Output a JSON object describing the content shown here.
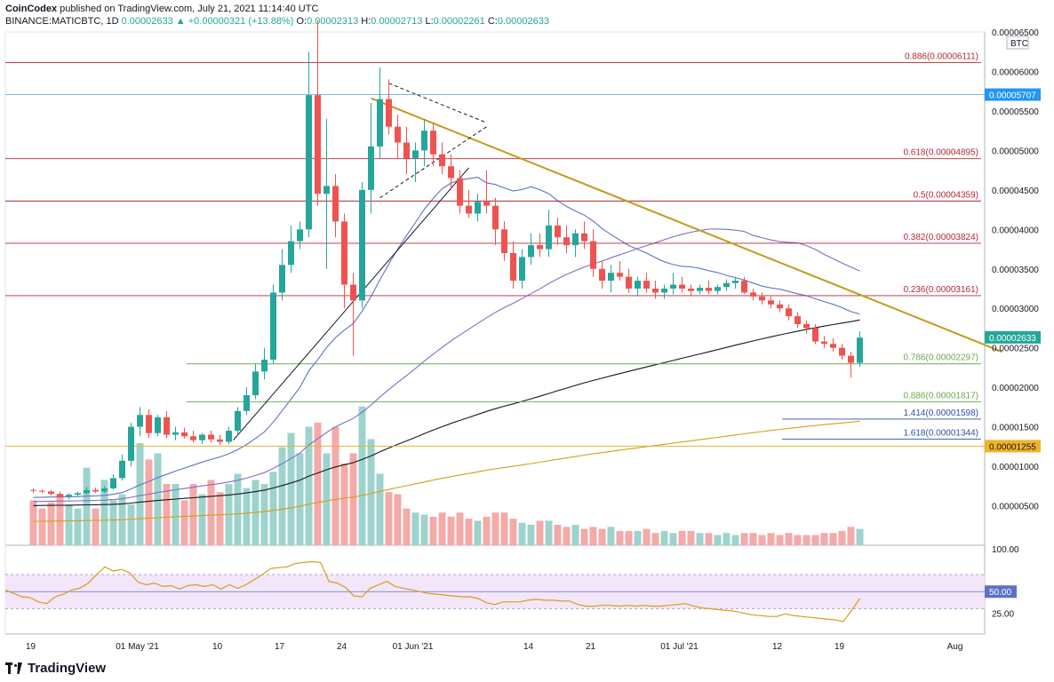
{
  "header": {
    "publisher": "CoinCodex",
    "published_text": "published on TradingView.com, July 21, 2021 11:14:40 UTC",
    "symbol": "BINANCE:MATICBTC, 1D",
    "last": "0.00002633",
    "change": "▲ +0.00000321 (+13.88%)",
    "o_label": "O:",
    "o": "0.00002313",
    "h_label": "H:",
    "h": "0.00002713",
    "l_label": "L:",
    "l": "0.00002261",
    "c_label": "C:",
    "c": "0.00002633"
  },
  "footer": {
    "brand": "TradingView"
  },
  "colors": {
    "up": "#26a69a",
    "down": "#ef5350",
    "up_vol": "#9ed3cd",
    "down_vol": "#f4aaa8",
    "trendline": "#c29b1a",
    "fib": "#b22833",
    "fib_green": "#6aa84f",
    "fib_blue": "#2f4fa8",
    "ma_black": "#131722",
    "ma_blue": "#5b73c7",
    "ma_purple": "#7a6fc4",
    "ma_orange": "#d4a017",
    "rsi": "#d4a017",
    "rsi_band": "#f3e5fa"
  },
  "chart_data": {
    "type": "candlestick",
    "price_axis_unit": "BTC",
    "ylim": [
      0,
      6.5e-05
    ],
    "price_ticks": [
      "0.00000500",
      "0.00001000",
      "0.00001500",
      "0.00002000",
      "0.00002500",
      "0.00003000",
      "0.00003500",
      "0.00004000",
      "0.00004500",
      "0.00005000",
      "0.00005500",
      "0.00006000",
      "0.00006500"
    ],
    "x_ticks": [
      {
        "label": "19",
        "day": 0
      },
      {
        "label": "01 May '21",
        "day": 12
      },
      {
        "label": "10",
        "day": 21
      },
      {
        "label": "17",
        "day": 28
      },
      {
        "label": "24",
        "day": 35
      },
      {
        "label": "01 Jun '21",
        "day": 43
      },
      {
        "label": "14",
        "day": 56
      },
      {
        "label": "21",
        "day": 63
      },
      {
        "label": "01 Jul '21",
        "day": 73
      },
      {
        "label": "12",
        "day": 84
      },
      {
        "label": "19",
        "day": 91
      },
      {
        "label": "Aug",
        "day": 104
      }
    ],
    "candles": [
      [
        7e-06,
        7.2e-06,
        6.6e-06,
        6.9e-06
      ],
      [
        6.9e-06,
        7.1e-06,
        6.6e-06,
        6.8e-06
      ],
      [
        6.8e-06,
        7e-06,
        6.3e-06,
        6.5e-06
      ],
      [
        6.5e-06,
        6.8e-06,
        6e-06,
        6.1e-06
      ],
      [
        6.1e-06,
        6.6e-06,
        5.8e-06,
        6.4e-06
      ],
      [
        6.4e-06,
        6.8e-06,
        6.1e-06,
        6.6e-06
      ],
      [
        6.6e-06,
        7.4e-06,
        6.4e-06,
        7e-06
      ],
      [
        7e-06,
        7.3e-06,
        6.6e-06,
        6.8e-06
      ],
      [
        6.8e-06,
        7.5e-06,
        6.6e-06,
        7.2e-06
      ],
      [
        7.2e-06,
        9e-06,
        7e-06,
        8.5e-06
      ],
      [
        8.5e-06,
        1.15e-05,
        8.2e-06,
        1.07e-05
      ],
      [
        1.07e-05,
        1.55e-05,
        1e-05,
        1.5e-05
      ],
      [
        1.5e-05,
        1.75e-05,
        1.38e-05,
        1.65e-05
      ],
      [
        1.65e-05,
        1.72e-05,
        1.36e-05,
        1.42e-05
      ],
      [
        1.42e-05,
        1.65e-05,
        1.38e-05,
        1.62e-05
      ],
      [
        1.62e-05,
        1.7e-05,
        1.35e-05,
        1.4e-05
      ],
      [
        1.4e-05,
        1.5e-05,
        1.33e-05,
        1.43e-05
      ],
      [
        1.43e-05,
        1.49e-05,
        1.35e-05,
        1.38e-05
      ],
      [
        1.38e-05,
        1.45e-05,
        1.3e-05,
        1.33e-05
      ],
      [
        1.33e-05,
        1.42e-05,
        1.28e-05,
        1.4e-05
      ],
      [
        1.4e-05,
        1.45e-05,
        1.3e-05,
        1.34e-05
      ],
      [
        1.34e-05,
        1.4e-05,
        1.27e-05,
        1.31e-05
      ],
      [
        1.31e-05,
        1.5e-05,
        1.28e-05,
        1.45e-05
      ],
      [
        1.45e-05,
        1.75e-05,
        1.4e-05,
        1.7e-05
      ],
      [
        1.7e-05,
        2e-05,
        1.65e-05,
        1.9e-05
      ],
      [
        1.9e-05,
        2.3e-05,
        1.85e-05,
        2.2e-05
      ],
      [
        2.2e-05,
        2.5e-05,
        2.1e-05,
        2.35e-05
      ],
      [
        2.35e-05,
        3.3e-05,
        2.3e-05,
        3.2e-05
      ],
      [
        3.2e-05,
        3.75e-05,
        3.1e-05,
        3.55e-05
      ],
      [
        3.55e-05,
        4.05e-05,
        3.45e-05,
        3.85e-05
      ],
      [
        3.85e-05,
        4.1e-05,
        3.75e-05,
        4e-05
      ],
      [
        4e-05,
        6.25e-05,
        3.9e-05,
        5.7e-05
      ],
      [
        5.7e-05,
        6.65e-05,
        4.3e-05,
        4.45e-05
      ],
      [
        4.45e-05,
        5.4e-05,
        3.5e-05,
        4.55e-05
      ],
      [
        4.55e-05,
        4.7e-05,
        3.9e-05,
        4.1e-05
      ],
      [
        4.1e-05,
        4.2e-05,
        3e-05,
        3.3e-05
      ],
      [
        3.3e-05,
        3.45e-05,
        2.4e-05,
        3.1e-05
      ],
      [
        3.1e-05,
        4.6e-05,
        3e-05,
        4.5e-05
      ],
      [
        4.5e-05,
        5.6e-05,
        4.2e-05,
        5.05e-05
      ],
      [
        5.05e-05,
        6.05e-05,
        4.9e-05,
        5.65e-05
      ],
      [
        5.65e-05,
        5.9e-05,
        5.2e-05,
        5.3e-05
      ],
      [
        5.3e-05,
        5.45e-05,
        4.9e-05,
        5.1e-05
      ],
      [
        5.1e-05,
        5.3e-05,
        4.7e-05,
        4.9e-05
      ],
      [
        4.9e-05,
        5.1e-05,
        4.6e-05,
        5e-05
      ],
      [
        5e-05,
        5.4e-05,
        4.8e-05,
        5.25e-05
      ],
      [
        5.25e-05,
        5.35e-05,
        4.8e-05,
        4.95e-05
      ],
      [
        4.95e-05,
        5.1e-05,
        4.7e-05,
        4.8e-05
      ],
      [
        4.8e-05,
        4.95e-05,
        4.5e-05,
        4.65e-05
      ],
      [
        4.65e-05,
        4.75e-05,
        4.2e-05,
        4.3e-05
      ],
      [
        4.3e-05,
        4.5e-05,
        4.15e-05,
        4.2e-05
      ],
      [
        4.2e-05,
        4.45e-05,
        4.1e-05,
        4.35e-05
      ],
      [
        4.35e-05,
        4.75e-05,
        4.2e-05,
        4.3e-05
      ],
      [
        4.3e-05,
        4.4e-05,
        3.8e-05,
        4e-05
      ],
      [
        4e-05,
        4.1e-05,
        3.6e-05,
        3.7e-05
      ],
      [
        3.7e-05,
        3.85e-05,
        3.25e-05,
        3.35e-05
      ],
      [
        3.35e-05,
        3.75e-05,
        3.25e-05,
        3.65e-05
      ],
      [
        3.65e-05,
        3.95e-05,
        3.55e-05,
        3.8e-05
      ],
      [
        3.8e-05,
        3.95e-05,
        3.65e-05,
        3.75e-05
      ],
      [
        3.75e-05,
        4.25e-05,
        3.65e-05,
        4.05e-05
      ],
      [
        4.05e-05,
        4.15e-05,
        3.8e-05,
        3.9e-05
      ],
      [
        3.9e-05,
        4.05e-05,
        3.7e-05,
        3.8e-05
      ],
      [
        3.8e-05,
        4e-05,
        3.65e-05,
        3.95e-05
      ],
      [
        3.95e-05,
        4.1e-05,
        3.75e-05,
        3.85e-05
      ],
      [
        3.85e-05,
        4e-05,
        3.4e-05,
        3.5e-05
      ],
      [
        3.5e-05,
        3.6e-05,
        3.25e-05,
        3.35e-05
      ],
      [
        3.35e-05,
        3.55e-05,
        3.2e-05,
        3.45e-05
      ],
      [
        3.45e-05,
        3.6e-05,
        3.35e-05,
        3.4e-05
      ],
      [
        3.4e-05,
        3.5e-05,
        3.2e-05,
        3.25e-05
      ],
      [
        3.25e-05,
        3.4e-05,
        3.15e-05,
        3.35e-05
      ],
      [
        3.35e-05,
        3.45e-05,
        3.2e-05,
        3.25e-05
      ],
      [
        3.25e-05,
        3.35e-05,
        3.12e-05,
        3.2e-05
      ],
      [
        3.2e-05,
        3.3e-05,
        3.12e-05,
        3.25e-05
      ],
      [
        3.25e-05,
        3.45e-05,
        3.18e-05,
        3.3e-05
      ],
      [
        3.3e-05,
        3.4e-05,
        3.2e-05,
        3.25e-05
      ],
      [
        3.25e-05,
        3.3e-05,
        3.15e-05,
        3.22e-05
      ],
      [
        3.22e-05,
        3.3e-05,
        3.18e-05,
        3.26e-05
      ],
      [
        3.26e-05,
        3.35e-05,
        3.18e-05,
        3.22e-05
      ],
      [
        3.22e-05,
        3.3e-05,
        3.18e-05,
        3.27e-05
      ],
      [
        3.27e-05,
        3.37e-05,
        3.22e-05,
        3.32e-05
      ],
      [
        3.32e-05,
        3.4e-05,
        3.25e-05,
        3.35e-05
      ],
      [
        3.35e-05,
        3.4e-05,
        3.18e-05,
        3.2e-05
      ],
      [
        3.2e-05,
        3.25e-05,
        3.1e-05,
        3.15e-05
      ],
      [
        3.15e-05,
        3.2e-05,
        3.05e-05,
        3.1e-05
      ],
      [
        3.1e-05,
        3.15e-05,
        3e-05,
        3.05e-05
      ],
      [
        3.05e-05,
        3.1e-05,
        2.95e-05,
        3e-05
      ],
      [
        3e-05,
        3.05e-05,
        2.85e-05,
        2.9e-05
      ],
      [
        2.9e-05,
        2.95e-05,
        2.75e-05,
        2.8e-05
      ],
      [
        2.8e-05,
        2.85e-05,
        2.68e-05,
        2.75e-05
      ],
      [
        2.75e-05,
        2.8e-05,
        2.55e-05,
        2.58e-05
      ],
      [
        2.58e-05,
        2.65e-05,
        2.5e-05,
        2.55e-05
      ],
      [
        2.55e-05,
        2.62e-05,
        2.45e-05,
        2.5e-05
      ],
      [
        2.5e-05,
        2.55e-05,
        2.35e-05,
        2.4e-05
      ],
      [
        2.4e-05,
        2.45e-05,
        2.12e-05,
        2.31e-05
      ],
      [
        2.31e-05,
        2.71e-05,
        2.26e-05,
        2.63e-05
      ]
    ],
    "volume_rel": [
      0.22,
      0.18,
      0.21,
      0.25,
      0.2,
      0.18,
      0.38,
      0.18,
      0.32,
      0.22,
      0.25,
      0.2,
      0.5,
      0.42,
      0.45,
      0.3,
      0.3,
      0.22,
      0.3,
      0.25,
      0.32,
      0.26,
      0.3,
      0.35,
      0.28,
      0.32,
      0.3,
      0.36,
      0.48,
      0.55,
      0.45,
      0.58,
      0.6,
      0.45,
      0.58,
      0.4,
      0.45,
      0.68,
      0.52,
      0.35,
      0.26,
      0.25,
      0.18,
      0.16,
      0.15,
      0.14,
      0.16,
      0.14,
      0.16,
      0.13,
      0.12,
      0.14,
      0.16,
      0.16,
      0.13,
      0.11,
      0.1,
      0.12,
      0.12,
      0.1,
      0.09,
      0.1,
      0.08,
      0.09,
      0.08,
      0.09,
      0.07,
      0.07,
      0.07,
      0.08,
      0.06,
      0.07,
      0.06,
      0.07,
      0.07,
      0.06,
      0.06,
      0.05,
      0.06,
      0.05,
      0.06,
      0.06,
      0.05,
      0.06,
      0.05,
      0.06,
      0.05,
      0.05,
      0.05,
      0.06,
      0.06,
      0.07,
      0.09,
      0.08
    ],
    "fib_levels": [
      {
        "label": "0.886(0.00006111)",
        "price": 6.111e-05,
        "style": "red"
      },
      {
        "label": "0.618(0.00004895)",
        "price": 4.895e-05,
        "style": "red"
      },
      {
        "label": "0.5(0.00004359)",
        "price": 4.359e-05,
        "style": "red"
      },
      {
        "label": "0.382(0.00003824)",
        "price": 3.824e-05,
        "style": "red"
      },
      {
        "label": "0.236(0.00003161)",
        "price": 3.161e-05,
        "style": "red"
      },
      {
        "label": "0.786(0.00002297)",
        "price": 2.297e-05,
        "style": "green"
      },
      {
        "label": "0.886(0.00001817)",
        "price": 1.817e-05,
        "style": "green"
      },
      {
        "label": "1.414(0.00001598)",
        "price": 1.598e-05,
        "style": "blue"
      },
      {
        "label": "1.618(0.00001344)",
        "price": 1.344e-05,
        "style": "blue"
      }
    ],
    "price_badges": [
      {
        "label": "0.00005707",
        "price": 5.707e-05,
        "color": "#2196f3"
      },
      {
        "label": "0.00002633",
        "price": 2.633e-05,
        "color": "#26a69a"
      },
      {
        "label": "0.00001255",
        "price": 1.255e-05,
        "color": "#f0b429"
      }
    ],
    "trendline": {
      "from": [
        38,
        5.66e-05
      ],
      "to": [
        109,
        2.45e-05
      ]
    },
    "rsi": {
      "ticks": [
        "100.00",
        "50.00",
        "25.00"
      ],
      "current_label": "50.00",
      "values": [
        52,
        48,
        44,
        43,
        38,
        36,
        44,
        47,
        52,
        54,
        60,
        70,
        79,
        74,
        76,
        72,
        61,
        58,
        60,
        56,
        57,
        53,
        57,
        58,
        56,
        58,
        53,
        58,
        54,
        58,
        64,
        70,
        77,
        78,
        79,
        83,
        84,
        85,
        84,
        62,
        60,
        55,
        45,
        44,
        54,
        58,
        62,
        56,
        54,
        52,
        50,
        48,
        47,
        46,
        45,
        44,
        44,
        42,
        37,
        35,
        38,
        38,
        38,
        40,
        41,
        40,
        40,
        39,
        39,
        35,
        33,
        33,
        34,
        34,
        33,
        34,
        33,
        34,
        33,
        33,
        34,
        35,
        36,
        33,
        31,
        30,
        29,
        28,
        27,
        25,
        23,
        22,
        21,
        21,
        24,
        22,
        21,
        20,
        19,
        18,
        17,
        15,
        28,
        42
      ]
    }
  }
}
